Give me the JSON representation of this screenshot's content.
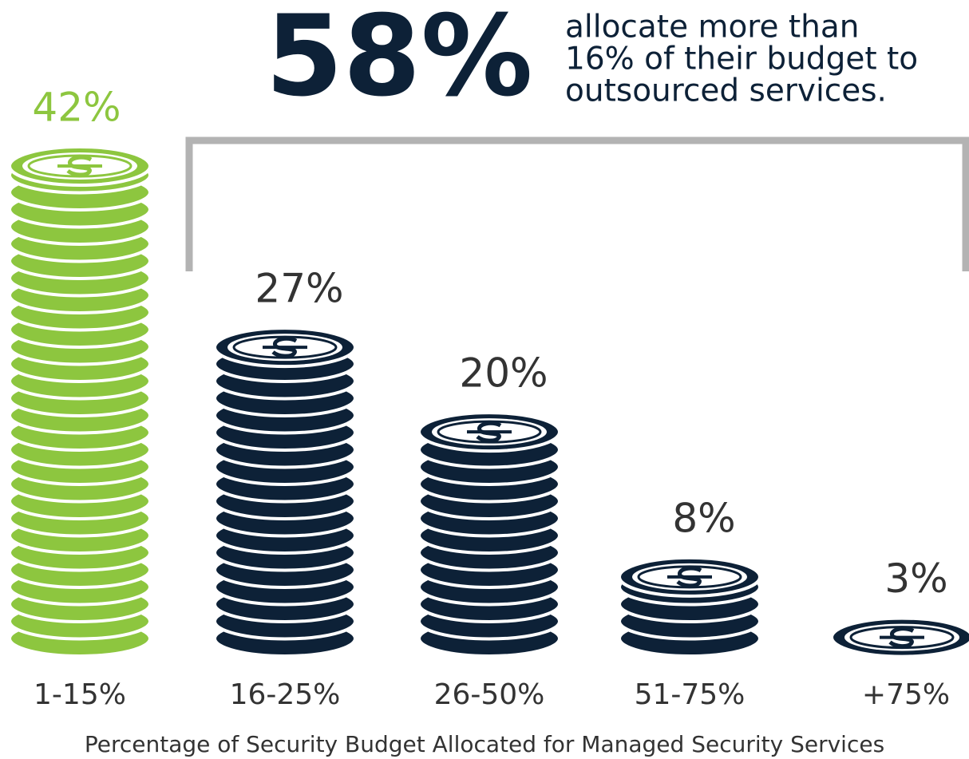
{
  "chart_data": {
    "type": "coin-stack",
    "headline": "58%",
    "headline_text": [
      "allocate more than",
      "16% of their budget to",
      "outsourced services."
    ],
    "x_label": "Percentage of Security Budget Allocated for Managed Security Services",
    "categories": [
      "1-15%",
      "16-25%",
      "26-50%",
      "51-75%",
      "+75%"
    ],
    "values": [
      42,
      27,
      20,
      8,
      3
    ],
    "value_labels": [
      "42%",
      "27%",
      "20%",
      "8%",
      "3%"
    ],
    "colors": [
      "#8dc63f",
      "#0d2137",
      "#0d2137",
      "#0d2137",
      "#0d2137"
    ]
  }
}
